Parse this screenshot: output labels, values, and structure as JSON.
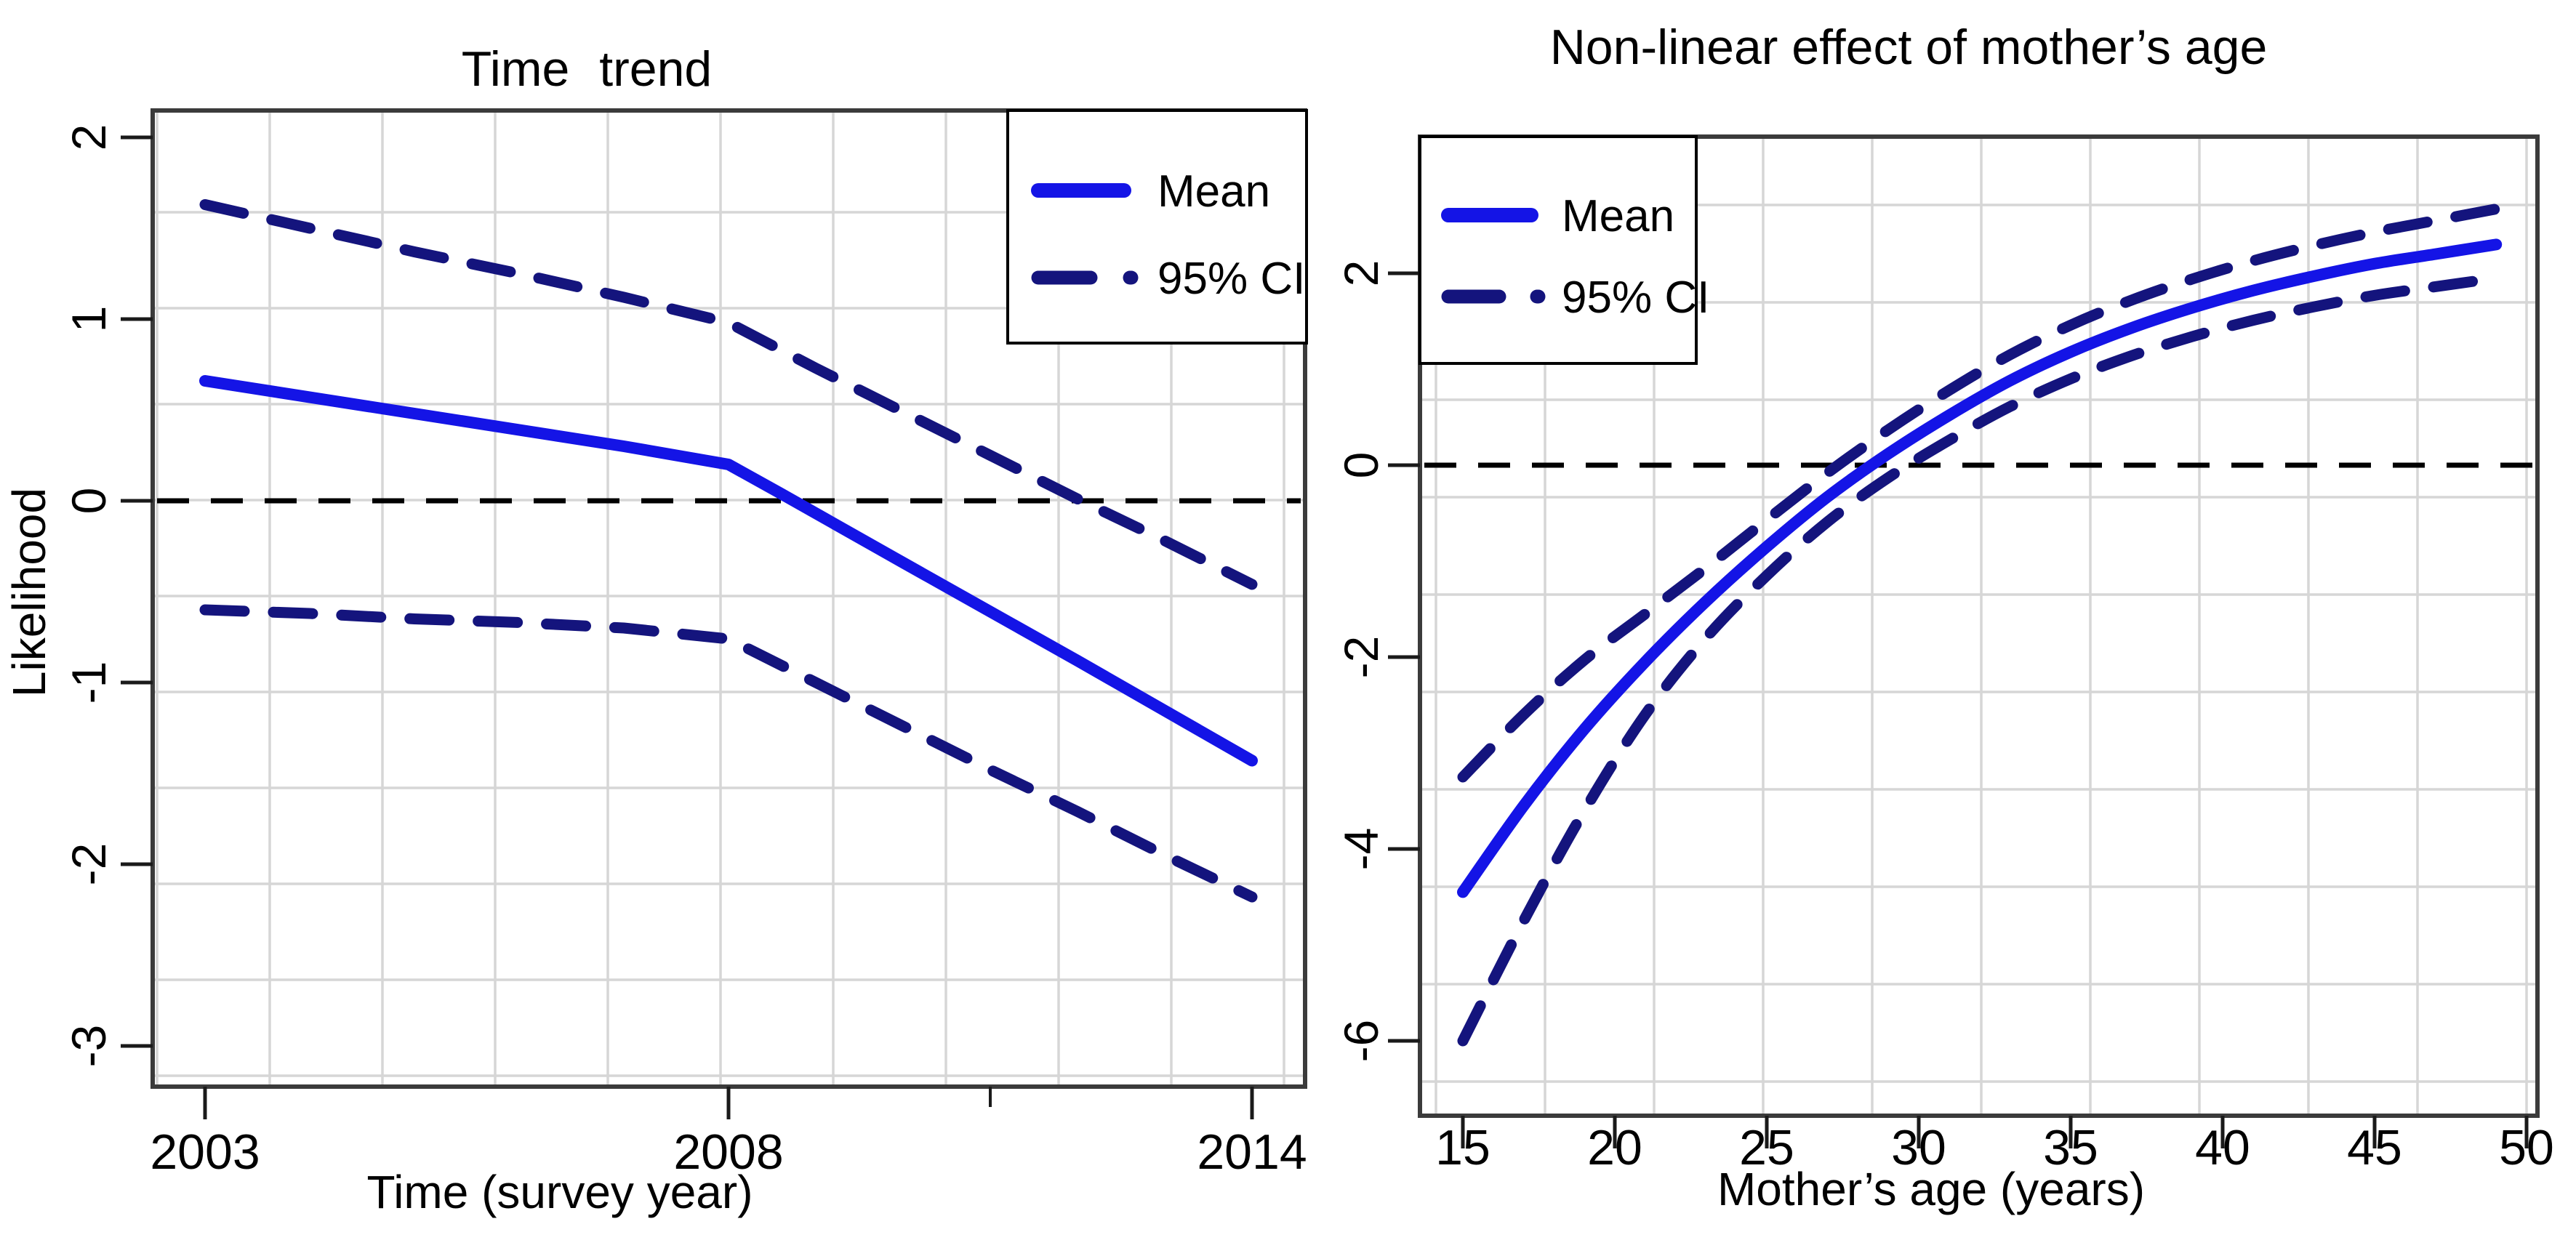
{
  "colors": {
    "mean_line": "#1414e6",
    "ci_line": "#14147d",
    "zero_line": "#000000",
    "grid": "#d6d6d6",
    "axis_border": "#3b3b3b",
    "text": "#000000",
    "background": "#ffffff"
  },
  "legend": {
    "mean_label": "Mean",
    "ci_label": "95% CI"
  },
  "chart_data": [
    {
      "type": "line",
      "title": "Time trend",
      "xlabel": "Time (survey year)",
      "ylabel": "Likelihood",
      "x_tick_labels": [
        "2003",
        "2008",
        "2014"
      ],
      "x_tick_values": [
        2003,
        2008,
        2014
      ],
      "y_tick_labels": [
        "2",
        "1",
        "0",
        "-1",
        "-2",
        "-3"
      ],
      "y_tick_values": [
        2,
        1,
        0,
        -1,
        -2,
        -3
      ],
      "xlim": [
        2002.5,
        2014.6
      ],
      "ylim": [
        -3.25,
        2.15
      ],
      "grid": true,
      "zero_line": 0,
      "legend_position": "top-right",
      "legend_entries": [
        "Mean",
        "95% CI"
      ],
      "series": [
        {
          "name": "Mean",
          "style": "solid",
          "x": [
            2003,
            2005,
            2007,
            2008,
            2008.6,
            2010,
            2012,
            2014
          ],
          "y": [
            0.66,
            0.48,
            0.3,
            0.2,
            0.04,
            -0.34,
            -0.88,
            -1.43
          ]
        },
        {
          "name": "95% CI upper",
          "style": "dashed",
          "x": [
            2003,
            2004,
            2005,
            2006,
            2007,
            2008,
            2009,
            2010,
            2011,
            2012,
            2013,
            2014
          ],
          "y": [
            1.63,
            1.5,
            1.37,
            1.25,
            1.12,
            0.98,
            0.73,
            0.49,
            0.25,
            0.01,
            -0.22,
            -0.46
          ]
        },
        {
          "name": "95% CI lower",
          "style": "dashed",
          "x": [
            2003,
            2004,
            2005,
            2006,
            2007,
            2008,
            2009,
            2010,
            2011,
            2012,
            2013,
            2014
          ],
          "y": [
            -0.6,
            -0.62,
            -0.65,
            -0.67,
            -0.7,
            -0.76,
            -1.0,
            -1.24,
            -1.48,
            -1.71,
            -1.95,
            -2.18
          ]
        }
      ]
    },
    {
      "type": "line",
      "title": "Non-linear effect of mother’s age",
      "xlabel": "Mother’s age  (years)",
      "ylabel": "",
      "x_tick_labels": [
        "15",
        "20",
        "25",
        "30",
        "35",
        "40",
        "45",
        "50"
      ],
      "x_tick_values": [
        15,
        20,
        25,
        30,
        35,
        40,
        45,
        50
      ],
      "y_tick_labels": [
        "2",
        "0",
        "-2",
        "-4",
        "-6"
      ],
      "y_tick_values": [
        2,
        0,
        -2,
        -4,
        -6
      ],
      "xlim": [
        13.6,
        50.4
      ],
      "ylim": [
        -6.8,
        3.4
      ],
      "grid": true,
      "zero_line": 0,
      "legend_position": "top-left",
      "legend_entries": [
        "Mean",
        "95% CI"
      ],
      "series": [
        {
          "name": "Mean",
          "style": "solid",
          "x": [
            15,
            17,
            19,
            21,
            23,
            25,
            27,
            29,
            31,
            33,
            35,
            37,
            39,
            41,
            43,
            45,
            47,
            49
          ],
          "y": [
            -4.45,
            -3.55,
            -2.75,
            -2.05,
            -1.42,
            -0.85,
            -0.33,
            0.12,
            0.52,
            0.88,
            1.18,
            1.43,
            1.64,
            1.82,
            1.97,
            2.1,
            2.2,
            2.3
          ]
        },
        {
          "name": "95% CI upper",
          "style": "dashed",
          "x": [
            15,
            17,
            19,
            21,
            23,
            25,
            27,
            29,
            31,
            33,
            35,
            37,
            39,
            41,
            43,
            45,
            47,
            49
          ],
          "y": [
            -3.25,
            -2.6,
            -2.03,
            -1.55,
            -1.07,
            -0.57,
            -0.08,
            0.37,
            0.78,
            1.15,
            1.46,
            1.72,
            1.94,
            2.13,
            2.29,
            2.43,
            2.55,
            2.67
          ]
        },
        {
          "name": "95% CI lower",
          "style": "dashed",
          "x": [
            15,
            17,
            19,
            21,
            23,
            25,
            27,
            29,
            31,
            33,
            35,
            37,
            39,
            41,
            43,
            45,
            47,
            49
          ],
          "y": [
            -6.0,
            -4.75,
            -3.6,
            -2.6,
            -1.8,
            -1.15,
            -0.59,
            -0.13,
            0.26,
            0.61,
            0.9,
            1.14,
            1.34,
            1.51,
            1.65,
            1.77,
            1.86,
            1.95
          ]
        }
      ]
    }
  ]
}
